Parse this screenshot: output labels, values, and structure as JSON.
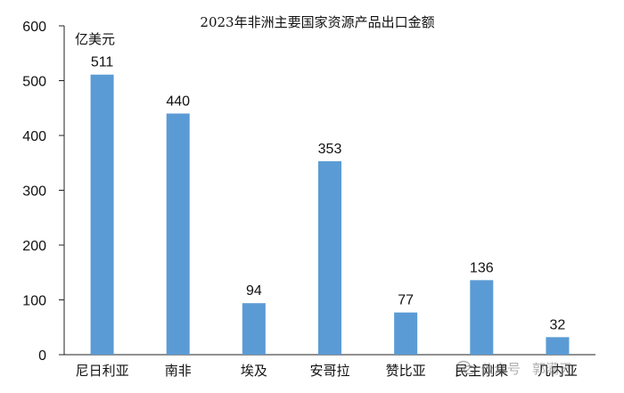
{
  "chart_data": {
    "type": "bar",
    "title": "2023年非洲主要国家资源产品出口金额",
    "unit_label": "亿美元",
    "categories": [
      "尼日利亚",
      "南非",
      "埃及",
      "安哥拉",
      "赞比亚",
      "民主刚果",
      "几内亚"
    ],
    "values": [
      511,
      440,
      94,
      353,
      77,
      136,
      32
    ],
    "ylim": [
      0,
      600
    ],
    "yticks": [
      0,
      100,
      200,
      300,
      400,
      500,
      600
    ],
    "bar_color": "#5B9BD5",
    "grid": false,
    "legend": "none"
  },
  "watermark": {
    "platform": "公众号",
    "name": "郭满天"
  }
}
